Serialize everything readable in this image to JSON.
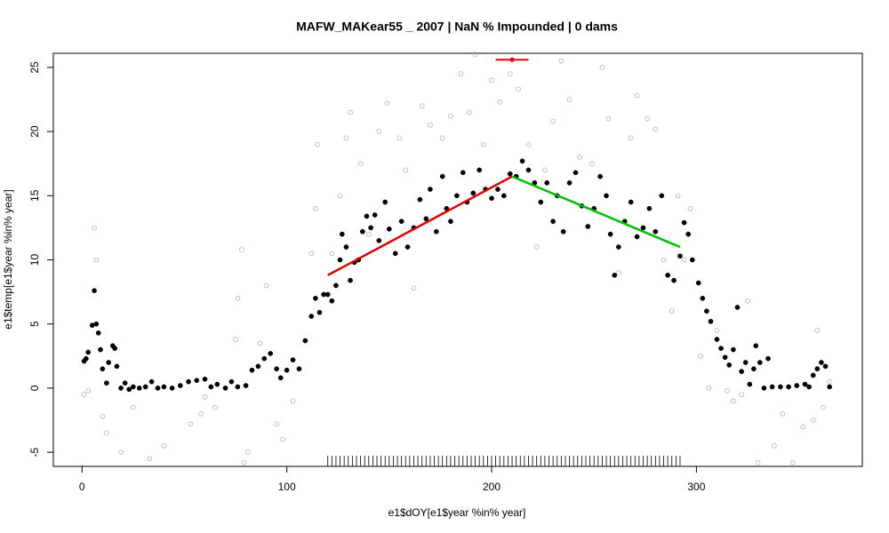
{
  "chart_data": {
    "type": "scatter",
    "title": "MAFW_MAKear55 _ 2007   |   NaN  % Impounded |  0  dams",
    "x_label": "e1$dOY[e1$year %in% year]",
    "y_label": "e1$temp[e1$year %in% year]",
    "xlim": [
      -14,
      381
    ],
    "ylim": [
      -6.1,
      26.1
    ],
    "xticks": [
      0,
      100,
      200,
      300
    ],
    "yticks": [
      -5,
      0,
      5,
      10,
      15,
      20,
      25
    ],
    "series": [
      {
        "color": "#000000",
        "marker": "filled",
        "x": [
          1,
          2,
          3,
          5,
          6,
          7,
          8,
          9,
          10,
          12,
          13,
          15,
          16,
          17,
          19,
          21,
          23,
          25,
          28,
          31,
          34,
          37,
          40,
          44,
          48,
          52,
          56,
          60,
          63,
          66,
          70,
          73,
          76,
          80,
          83,
          86,
          89,
          92,
          95,
          97,
          100,
          103,
          106,
          109,
          112,
          114,
          116,
          118,
          120,
          122,
          124,
          126,
          127,
          129,
          131,
          133,
          135,
          137,
          139,
          141,
          143,
          145,
          148,
          150,
          153,
          156,
          159,
          162,
          165,
          168,
          170,
          173,
          176,
          178,
          180,
          183,
          186,
          188,
          191,
          194,
          197,
          200,
          203,
          206,
          209,
          212,
          215,
          218,
          221,
          224,
          227,
          230,
          232,
          235,
          238,
          241,
          244,
          247,
          250,
          253,
          256,
          258,
          260,
          262,
          265,
          268,
          271,
          274,
          277,
          280,
          283,
          286,
          289,
          292,
          294,
          296,
          298,
          301,
          303,
          305,
          307,
          310,
          312,
          314,
          316,
          318,
          320,
          322,
          324,
          326,
          328,
          329,
          331,
          333,
          335,
          337,
          341,
          345,
          349,
          353,
          355,
          357,
          359,
          361,
          363,
          365
        ],
        "y": [
          2.1,
          2.3,
          2.8,
          4.9,
          7.6,
          5,
          4.3,
          3,
          1.5,
          0.4,
          2,
          3.3,
          3.1,
          1.7,
          0,
          0.4,
          -0.1,
          0.1,
          0,
          0.1,
          0.5,
          0,
          0.1,
          0,
          0.2,
          0.5,
          0.6,
          0.7,
          0.1,
          0.3,
          0,
          0.5,
          0.1,
          0.2,
          1.4,
          1.7,
          2.3,
          2.7,
          1.5,
          0.8,
          1.4,
          2.2,
          1.5,
          3.7,
          5.6,
          7,
          5.9,
          7.3,
          7.3,
          6.8,
          8,
          10,
          12,
          11,
          8.4,
          9.8,
          10,
          12.2,
          13.4,
          12.5,
          13.5,
          11.5,
          14.5,
          12.4,
          10.5,
          13,
          11,
          12.5,
          14.7,
          13.2,
          15.5,
          12.2,
          16.5,
          14,
          13,
          15,
          16.8,
          14.5,
          15.2,
          17,
          15.5,
          14.8,
          15.5,
          15,
          16.7,
          16.5,
          17.7,
          17,
          16,
          14.5,
          16,
          13,
          15,
          12.2,
          16,
          16.8,
          14.2,
          12.6,
          14,
          16.5,
          15,
          12,
          8.8,
          11,
          13,
          14.5,
          11.8,
          12.5,
          14,
          12.2,
          15,
          8.8,
          8.4,
          10.3,
          12.9,
          12,
          10,
          8.2,
          7,
          6,
          5.2,
          3.8,
          3.1,
          2.4,
          1.8,
          3,
          6.3,
          1.3,
          2,
          0.3,
          1.5,
          3.3,
          2,
          0,
          2.3,
          0.1,
          0.1,
          0.1,
          0.2,
          0.3,
          0.1,
          1,
          1.5,
          2,
          1.7,
          0.1
        ]
      },
      {
        "color": "#b0b0b0",
        "marker": "open",
        "x": [
          1,
          3,
          6,
          7,
          10,
          12,
          19,
          25,
          33,
          40,
          53,
          58,
          60,
          65,
          75,
          76,
          78,
          79,
          81,
          87,
          90,
          95,
          98,
          103,
          112,
          114,
          115,
          122,
          126,
          129,
          131,
          136,
          140,
          145,
          149,
          155,
          158,
          162,
          166,
          170,
          176,
          180,
          185,
          189,
          192,
          196,
          200,
          204,
          209,
          213,
          218,
          222,
          226,
          230,
          234,
          238,
          243,
          249,
          254,
          257,
          262,
          268,
          271,
          276,
          280,
          284,
          288,
          291,
          294,
          297,
          302,
          306,
          310,
          315,
          318,
          322,
          325,
          330,
          338,
          342,
          347,
          352,
          357,
          359,
          362,
          365
        ],
        "y": [
          -0.5,
          -0.2,
          12.5,
          10,
          -2.2,
          -3.5,
          -5,
          -1.5,
          -5.5,
          -4.5,
          -2.8,
          -2,
          -0.7,
          -1.5,
          3.8,
          7,
          10.8,
          -5.8,
          -5,
          3.5,
          8,
          -2.8,
          -4,
          -1,
          10.5,
          14,
          19,
          10.5,
          15,
          19.5,
          21.5,
          17.5,
          12,
          20,
          22.2,
          19.5,
          17,
          7.8,
          22,
          20.5,
          19.5,
          21.2,
          24.5,
          21.5,
          26,
          19,
          24,
          22.3,
          24.5,
          23.3,
          19,
          11,
          17,
          20.8,
          25.5,
          22.5,
          18,
          17.5,
          25,
          21,
          9,
          19.5,
          22.8,
          21,
          20.2,
          10,
          6,
          15,
          10,
          14,
          2.5,
          0,
          4.5,
          -0.2,
          -1,
          -0.5,
          6.8,
          -5.8,
          -4.5,
          -2,
          -5.8,
          -3,
          -2.5,
          4.5,
          -1.5,
          0.5
        ]
      }
    ],
    "lines": [
      {
        "color": "#e00000",
        "x": [
          120,
          210
        ],
        "y": [
          8.8,
          16.5
        ]
      },
      {
        "color": "#00c000",
        "x": [
          210,
          292
        ],
        "y": [
          16.5,
          11
        ]
      }
    ],
    "peak": {
      "color": "#e00000",
      "x": 210,
      "y": 25.6,
      "xlow": 202,
      "xhigh": 218
    },
    "rug": [
      120,
      122,
      124,
      126,
      128,
      130,
      132,
      134,
      136,
      138,
      140,
      142,
      144,
      146,
      148,
      150,
      152,
      154,
      156,
      158,
      160,
      162,
      164,
      166,
      168,
      170,
      172,
      174,
      176,
      178,
      180,
      182,
      184,
      186,
      188,
      190,
      192,
      194,
      196,
      198,
      200,
      202,
      204,
      206,
      208,
      210,
      212,
      214,
      216,
      218,
      220,
      222,
      224,
      226,
      228,
      230,
      232,
      234,
      236,
      238,
      240,
      242,
      244,
      246,
      248,
      250,
      252,
      254,
      256,
      258,
      260,
      262,
      264,
      266,
      268,
      270,
      272,
      274,
      276,
      278,
      280,
      282,
      284,
      286,
      288,
      290,
      292
    ]
  }
}
